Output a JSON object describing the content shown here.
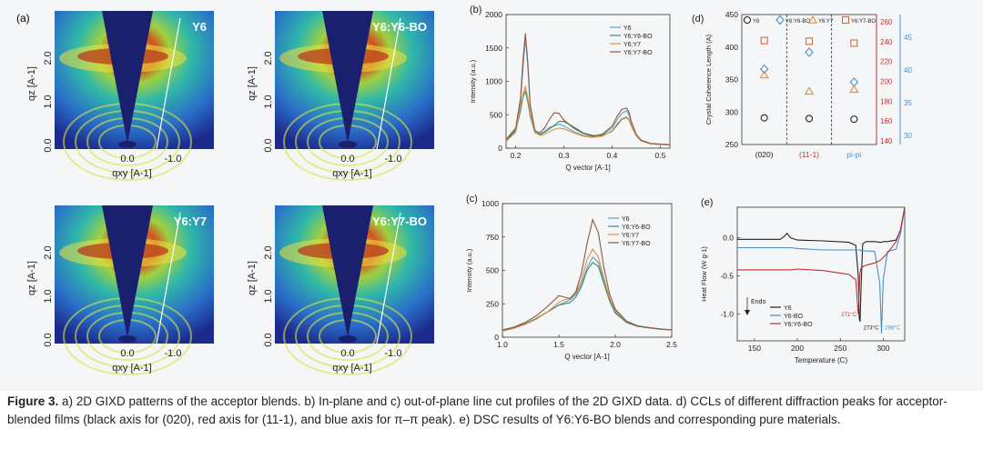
{
  "gixd": {
    "panel_label": "(a)",
    "patterns": [
      {
        "name": "Y6"
      },
      {
        "name": "Y6:Y6-BO"
      },
      {
        "name": "Y6:Y7"
      },
      {
        "name": "Y6:Y7-BO"
      }
    ],
    "qz_label": "qz [A-1]",
    "qxy_label": "qxy [A-1]",
    "qz_ticks": [
      "0.0",
      "1.0",
      "2.0"
    ],
    "qxy_ticks": [
      "0.0",
      "-1.0"
    ]
  },
  "colors": {
    "y6": "#5aa3c8",
    "y6y6bo": "#3e8a78",
    "y6y7": "#e0903a",
    "y6y7bo": "#8a5a45",
    "y6_dsc": "#222222",
    "y6bo_dsc": "#4a90c8",
    "y6y6bo_dsc": "#c03030",
    "red_axis": "#c03030",
    "blue_axis": "#4a90c8"
  },
  "chart_data": [
    {
      "panel": "(b)",
      "type": "line",
      "xlabel": "Q vector [A-1]",
      "ylabel": "Intensity (a.u.)",
      "xlim": [
        0.18,
        0.52
      ],
      "ylim": [
        0,
        2000
      ],
      "xticks": [
        0.2,
        0.3,
        0.4,
        0.5
      ],
      "yticks": [
        0,
        500,
        1000,
        1500,
        2000
      ],
      "legend_position": "top-right",
      "x": [
        0.18,
        0.2,
        0.21,
        0.215,
        0.22,
        0.225,
        0.23,
        0.24,
        0.25,
        0.26,
        0.27,
        0.28,
        0.29,
        0.3,
        0.32,
        0.34,
        0.36,
        0.38,
        0.4,
        0.41,
        0.42,
        0.43,
        0.435,
        0.44,
        0.45,
        0.46,
        0.48,
        0.5,
        0.52
      ],
      "series": [
        {
          "name": "Y6",
          "values": [
            120,
            280,
            700,
            1180,
            1650,
            1250,
            620,
            250,
            210,
            250,
            310,
            330,
            360,
            330,
            250,
            190,
            170,
            200,
            300,
            420,
            520,
            560,
            500,
            380,
            200,
            120,
            70,
            60,
            50
          ]
        },
        {
          "name": "Y6:Y6-BO",
          "values": [
            110,
            260,
            560,
            760,
            850,
            700,
            480,
            230,
            200,
            240,
            290,
            340,
            400,
            400,
            320,
            230,
            190,
            190,
            250,
            340,
            430,
            460,
            420,
            330,
            190,
            110,
            65,
            55,
            50
          ]
        },
        {
          "name": "Y6:Y7",
          "values": [
            100,
            240,
            620,
            800,
            920,
            760,
            520,
            240,
            190,
            210,
            250,
            280,
            300,
            290,
            230,
            180,
            160,
            180,
            260,
            360,
            440,
            470,
            430,
            330,
            190,
            110,
            65,
            55,
            50
          ]
        },
        {
          "name": "Y6:Y7-BO",
          "values": [
            130,
            300,
            750,
            1300,
            1720,
            1300,
            650,
            260,
            230,
            300,
            430,
            530,
            520,
            420,
            300,
            220,
            180,
            210,
            330,
            470,
            580,
            600,
            540,
            400,
            210,
            120,
            70,
            60,
            50
          ]
        }
      ]
    },
    {
      "panel": "(c)",
      "type": "line",
      "xlabel": "Q vector [A-1]",
      "ylabel": "Intensity (a.u.)",
      "xlim": [
        1.0,
        2.5
      ],
      "ylim": [
        0,
        1000
      ],
      "xticks": [
        1.0,
        1.5,
        2.0,
        2.5
      ],
      "yticks": [
        0,
        250,
        500,
        750,
        1000
      ],
      "legend_position": "top-right",
      "x": [
        1.0,
        1.1,
        1.2,
        1.3,
        1.4,
        1.5,
        1.55,
        1.6,
        1.65,
        1.7,
        1.75,
        1.8,
        1.85,
        1.9,
        1.95,
        2.0,
        2.1,
        2.2,
        2.3,
        2.4,
        2.5
      ],
      "series": [
        {
          "name": "Y6",
          "values": [
            50,
            70,
            100,
            140,
            190,
            240,
            260,
            280,
            320,
            400,
            520,
            600,
            560,
            420,
            280,
            190,
            110,
            80,
            70,
            60,
            55
          ]
        },
        {
          "name": "Y6:Y6-BO",
          "values": [
            50,
            70,
            100,
            140,
            190,
            240,
            250,
            260,
            300,
            380,
            500,
            560,
            530,
            400,
            270,
            180,
            110,
            80,
            70,
            60,
            55
          ]
        },
        {
          "name": "Y6:Y7",
          "values": [
            45,
            65,
            95,
            135,
            190,
            260,
            280,
            290,
            330,
            430,
            580,
            660,
            600,
            440,
            290,
            200,
            120,
            85,
            72,
            62,
            55
          ]
        },
        {
          "name": "Y6:Y7-BO",
          "values": [
            55,
            75,
            110,
            160,
            230,
            310,
            300,
            290,
            340,
            480,
            700,
            880,
            780,
            520,
            320,
            210,
            120,
            85,
            72,
            62,
            55
          ]
        }
      ]
    },
    {
      "panel": "(d)",
      "type": "scatter",
      "ylabel": "Crystal Coherence Length (A)",
      "categories": [
        "(020)",
        "(11-1)",
        "pi-pi"
      ],
      "ylim": [
        250,
        450
      ],
      "yticks": [
        250,
        300,
        350,
        400,
        450
      ],
      "red_axis_ticks": [
        140,
        160,
        180,
        200,
        220,
        240,
        260
      ],
      "blue_axis_ticks": [
        30,
        35,
        40,
        45
      ],
      "legend_position": "top",
      "series": [
        {
          "name": "Y6",
          "values": [
            291,
            290,
            289
          ]
        },
        {
          "name": "Y6:Y6-BO",
          "values": [
            366,
            392,
            346
          ]
        },
        {
          "name": "Y6:Y7",
          "values": [
            357,
            332,
            335
          ]
        },
        {
          "name": "Y6:Y7-BO",
          "values": [
            410,
            409,
            406
          ]
        }
      ]
    },
    {
      "panel": "(e)",
      "type": "line",
      "xlabel": "Temperature (C)",
      "ylabel": "Heat Flow (W g-1)",
      "xlim": [
        130,
        325
      ],
      "ylim": [
        -1.35,
        0.4
      ],
      "xticks": [
        150,
        200,
        250,
        300
      ],
      "yticks": [
        0.0,
        -0.5,
        -1.0
      ],
      "endo_label": "Endo",
      "legend_position": "bottom-left",
      "annotations": [
        "271°C",
        "273°C",
        "298°C"
      ],
      "x": [
        130,
        180,
        185,
        188,
        192,
        200,
        230,
        260,
        268,
        271,
        272,
        273,
        274,
        276,
        280,
        290,
        296,
        298,
        300,
        305,
        315,
        320,
        325
      ],
      "series": [
        {
          "name": "Y6",
          "values": [
            -0.02,
            -0.02,
            0.02,
            0.06,
            0.0,
            -0.03,
            -0.04,
            -0.06,
            -0.1,
            -0.5,
            -1.05,
            -1.1,
            -0.7,
            -0.08,
            -0.05,
            -0.05,
            -0.06,
            -0.06,
            -0.05,
            -0.05,
            -0.03,
            0.1,
            0.4
          ]
        },
        {
          "name": "Y6-BO",
          "values": [
            -0.13,
            -0.13,
            -0.13,
            -0.13,
            -0.13,
            -0.14,
            -0.16,
            -0.16,
            -0.16,
            -0.16,
            -0.16,
            -0.16,
            -0.17,
            -0.17,
            -0.17,
            -0.18,
            -0.6,
            -1.25,
            -0.55,
            -0.18,
            -0.15,
            0.05,
            0.4
          ]
        },
        {
          "name": "Y6:Y6-BO",
          "values": [
            -0.42,
            -0.42,
            -0.42,
            -0.42,
            -0.42,
            -0.41,
            -0.43,
            -0.48,
            -0.55,
            -1.0,
            -0.7,
            -0.45,
            -0.4,
            -0.38,
            -0.36,
            -0.33,
            -0.3,
            -0.28,
            -0.26,
            -0.2,
            -0.05,
            0.1,
            0.4
          ]
        }
      ]
    }
  ],
  "caption": {
    "label": "Figure 3.",
    "text": " a) 2D GIXD patterns of the acceptor blends. b) In-plane and c) out-of-plane line cut profiles of the 2D GIXD data. d) CCLs of different diffraction peaks for acceptor-blended films (black axis for (020), red axis for (11-1), and blue axis for π–π peak). e) DSC results of Y6:Y6-BO blends and corresponding pure materials."
  }
}
